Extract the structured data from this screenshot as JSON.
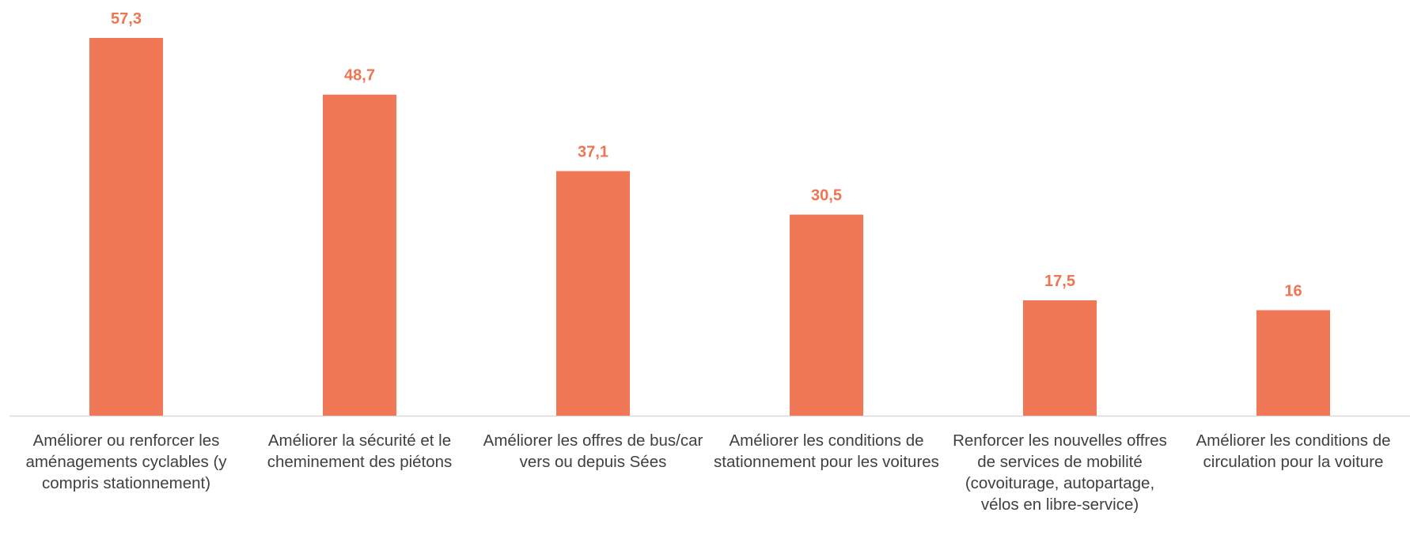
{
  "chart_data": {
    "type": "bar",
    "categories": [
      "Améliorer ou renforcer les aménagements cyclables (y compris stationnement)",
      "Améliorer la sécurité et le cheminement des piétons",
      "Améliorer les offres de bus/car vers ou depuis Sées",
      "Améliorer les conditions de stationnement pour les voitures",
      "Renforcer les nouvelles offres de services de mobilité (covoiturage, autopartage, vélos en libre-service)",
      "Améliorer les conditions de circulation pour la voiture"
    ],
    "values": [
      57.3,
      48.7,
      37.1,
      30.5,
      17.5,
      16
    ],
    "value_labels": [
      "57,3",
      "48,7",
      "37,1",
      "30,5",
      "17,5",
      "16"
    ],
    "color": "#f07857",
    "label_color": "#ee7552"
  }
}
